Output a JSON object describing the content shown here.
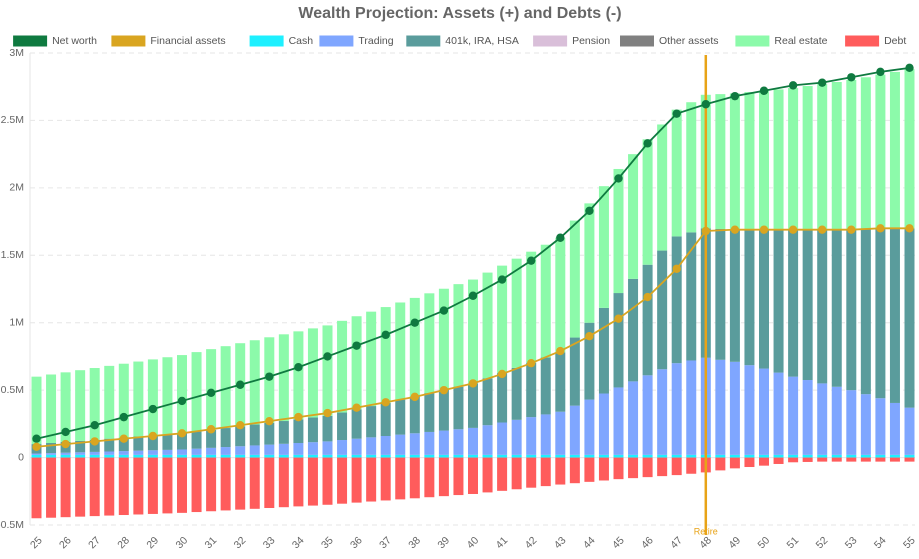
{
  "chart_data": {
    "type": "bar",
    "title": "Wealth Projection: Assets (+) and Debts (-)",
    "xlabel": "",
    "ylabel": "",
    "stacked": true,
    "ylim": [
      -500000,
      3000000
    ],
    "yticks": [
      {
        "value": 3000000,
        "label": "3M"
      },
      {
        "value": 2500000,
        "label": "2.5M"
      },
      {
        "value": 2000000,
        "label": "2M"
      },
      {
        "value": 1500000,
        "label": "1.5M"
      },
      {
        "value": 1000000,
        "label": "1M"
      },
      {
        "value": 500000,
        "label": "0.5M"
      },
      {
        "value": 0,
        "label": "0"
      },
      {
        "value": -500000,
        "label": "-0.5M"
      }
    ],
    "x_start": 25,
    "x_step": 0.5,
    "x_count": 61,
    "xtick_labels": [
      "25",
      "26",
      "27",
      "28",
      "29",
      "30",
      "31",
      "32",
      "33",
      "34",
      "35",
      "36",
      "37",
      "38",
      "39",
      "40",
      "41",
      "42",
      "43",
      "44",
      "45",
      "46",
      "47",
      "48",
      "49",
      "50",
      "51",
      "52",
      "53",
      "54",
      "55"
    ],
    "legend": [
      {
        "name": "Net worth",
        "color": "#0f7a40"
      },
      {
        "name": "Financial assets",
        "color": "#d9a520"
      },
      {
        "name": "Cash",
        "color": "#1ef0ff"
      },
      {
        "name": "Trading",
        "color": "#7fa6ff"
      },
      {
        "name": "401k, IRA, HSA",
        "color": "#5a9c9c"
      },
      {
        "name": "Pension",
        "color": "#d9bfd9"
      },
      {
        "name": "Other assets",
        "color": "#808080"
      },
      {
        "name": "Real estate",
        "color": "#8cfaaa"
      },
      {
        "name": "Debt",
        "color": "#ff5c5c"
      }
    ],
    "bar_keyframes": {
      "x": [
        25,
        30,
        35,
        40,
        43,
        45,
        47,
        48,
        49,
        50,
        51,
        52,
        53,
        54,
        55
      ],
      "cash": [
        20000,
        20000,
        20000,
        20000,
        20000,
        20000,
        20000,
        20000,
        20000,
        20000,
        20000,
        20000,
        20000,
        20000,
        20000
      ],
      "trading": [
        10000,
        40000,
        100000,
        200000,
        320000,
        500000,
        680000,
        720000,
        690000,
        640000,
        580000,
        530000,
        480000,
        420000,
        350000
      ],
      "retirement": [
        70000,
        120000,
        190000,
        330000,
        440000,
        700000,
        940000,
        960000,
        980000,
        1030000,
        1090000,
        1140000,
        1190000,
        1260000,
        1330000
      ],
      "real_estate": [
        500000,
        580000,
        670000,
        770000,
        850000,
        920000,
        940000,
        990000,
        1010000,
        1030000,
        1050000,
        1080000,
        1110000,
        1140000,
        1180000
      ],
      "debt": [
        -450000,
        -410000,
        -350000,
        -270000,
        -200000,
        -160000,
        -130000,
        -110000,
        -80000,
        -60000,
        -35000,
        -30000,
        -30000,
        -30000,
        -30000
      ]
    },
    "series": [
      {
        "name": "Net worth",
        "type": "line",
        "x": [
          25,
          26,
          27,
          28,
          29,
          30,
          31,
          32,
          33,
          34,
          35,
          36,
          37,
          38,
          39,
          40,
          41,
          42,
          43,
          44,
          45,
          46,
          47,
          48,
          49,
          50,
          51,
          52,
          53,
          54,
          55
        ],
        "values": [
          140000,
          190000,
          240000,
          300000,
          360000,
          420000,
          480000,
          540000,
          600000,
          670000,
          750000,
          830000,
          910000,
          1000000,
          1090000,
          1200000,
          1320000,
          1460000,
          1630000,
          1830000,
          2070000,
          2330000,
          2550000,
          2620000,
          2680000,
          2720000,
          2760000,
          2780000,
          2820000,
          2860000,
          2890000
        ]
      },
      {
        "name": "Financial assets",
        "type": "line",
        "x": [
          25,
          26,
          27,
          28,
          29,
          30,
          31,
          32,
          33,
          34,
          35,
          36,
          37,
          38,
          39,
          40,
          41,
          42,
          43,
          44,
          45,
          46,
          47,
          48,
          49,
          50,
          51,
          52,
          53,
          54,
          55
        ],
        "values": [
          80000,
          100000,
          120000,
          140000,
          160000,
          180000,
          210000,
          240000,
          270000,
          300000,
          330000,
          370000,
          410000,
          450000,
          500000,
          550000,
          620000,
          700000,
          790000,
          900000,
          1030000,
          1190000,
          1400000,
          1680000,
          1690000,
          1690000,
          1690000,
          1690000,
          1690000,
          1700000,
          1700000
        ]
      }
    ],
    "annotations": [
      {
        "type": "vline",
        "x": 48,
        "label": "Retire",
        "color": "#e8a317"
      }
    ]
  }
}
